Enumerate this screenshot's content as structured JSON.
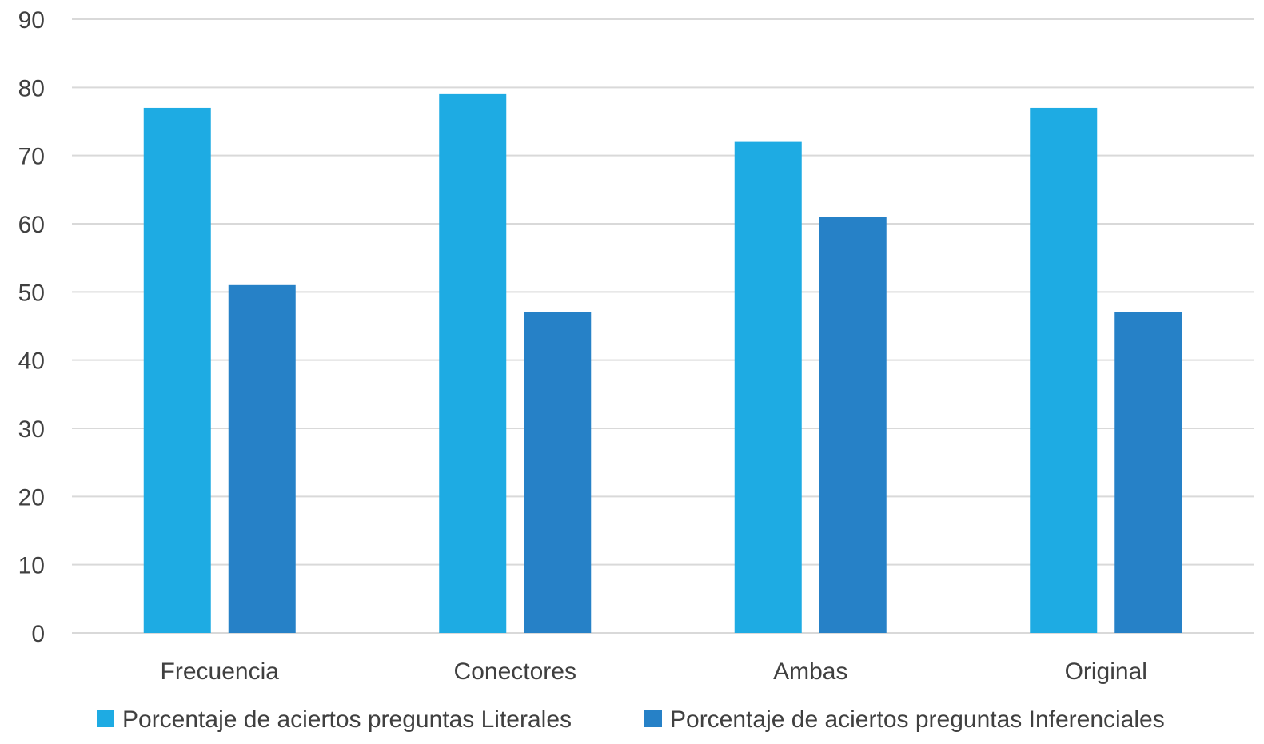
{
  "chart_data": {
    "type": "bar",
    "title": "",
    "xlabel": "",
    "ylabel": "",
    "categories": [
      "Frecuencia",
      "Conectores",
      "Ambas",
      "Original"
    ],
    "series": [
      {
        "name": "Porcentaje de aciertos preguntas Literales",
        "color": "#1EABE3",
        "values": [
          77,
          79,
          72,
          77
        ]
      },
      {
        "name": "Porcentaje de aciertos preguntas Inferenciales",
        "color": "#2681C7",
        "values": [
          51,
          47,
          61,
          47
        ]
      }
    ],
    "ylim": [
      0,
      90
    ],
    "yticks": [
      "0",
      "10",
      "20",
      "30",
      "40",
      "50",
      "60",
      "70",
      "80",
      "90"
    ],
    "grid": true,
    "gridline_color": "#D9D9D9",
    "legend_position": "bottom"
  }
}
